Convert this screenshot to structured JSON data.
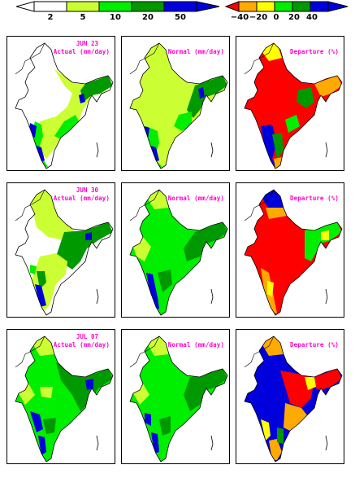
{
  "colorbars": {
    "rainfall": {
      "labels": [
        "2",
        "5",
        "10",
        "20",
        "50"
      ],
      "colors": [
        "#ffffff",
        "#ccff33",
        "#00ee00",
        "#009900",
        "#0000dd"
      ]
    },
    "departure": {
      "labels": [
        "−40",
        "−20",
        "0",
        "20",
        "40"
      ],
      "colors": [
        "#ff0000",
        "#ffaa00",
        "#ffff00",
        "#00ee00",
        "#009900",
        "#0000dd"
      ]
    }
  },
  "rows": [
    {
      "date": "JUN 23",
      "actual_label": "Actual (mm/day)",
      "normal_label": "Normal (mm/day)",
      "departure_label": "Departure (%)"
    },
    {
      "date": "JUN 30",
      "actual_label": "Actual (mm/day)",
      "normal_label": "Normal (mm/day)",
      "departure_label": "Departure (%)"
    },
    {
      "date": "JUL 07",
      "actual_label": "Actual (mm/day)",
      "normal_label": "Normal (mm/day)",
      "departure_label": "Departure (%)"
    }
  ],
  "colors": {
    "title_magenta": "#ff00cc",
    "outline": "#000000"
  }
}
